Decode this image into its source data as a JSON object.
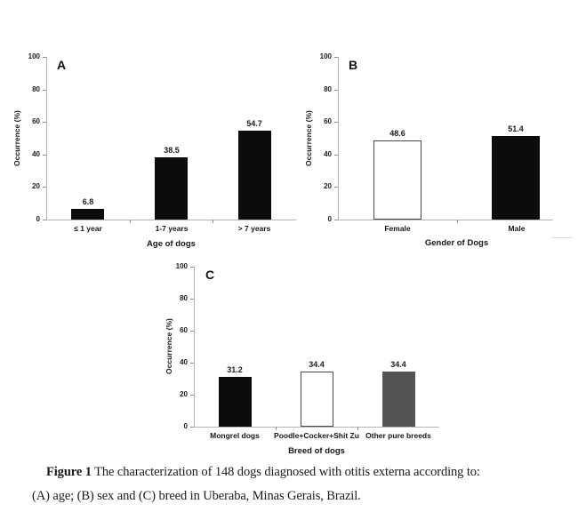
{
  "figure": {
    "background": "#ffffff"
  },
  "colors": {
    "bar_black": "#0c0c0c",
    "bar_white": "#ffffff",
    "bar_gray": "#545454",
    "white_bar_border": "#4a4a4a",
    "axis_line": "#b4b4b4",
    "tick_mark": "#8e8e8e",
    "text": "#1c1c1c"
  },
  "chart_data": [
    {
      "type": "bar",
      "panel_label": "A",
      "title": "",
      "xlabel": "Age of dogs",
      "ylabel": "Occurrence  (%)",
      "categories": [
        "≤ 1 year",
        "1-7 years",
        "> 7 years"
      ],
      "values": [
        6.8,
        38.5,
        54.7
      ],
      "value_labels": [
        "6.8",
        "38.5",
        "54.7"
      ],
      "bar_colors": [
        "#0c0c0c",
        "#0c0c0c",
        "#0c0c0c"
      ],
      "ylim": [
        0,
        100
      ],
      "yticks": [
        0,
        20,
        40,
        60,
        80,
        100
      ],
      "grid": false,
      "legend": "none"
    },
    {
      "type": "bar",
      "panel_label": "B",
      "title": "",
      "xlabel": "Gender of Dogs",
      "ylabel": "Occurrence (%)",
      "categories": [
        "Female",
        "Male"
      ],
      "values": [
        48.6,
        51.4
      ],
      "value_labels": [
        "48.6",
        "51.4"
      ],
      "bar_colors": [
        "#ffffff",
        "#0c0c0c"
      ],
      "ylim": [
        0,
        100
      ],
      "yticks": [
        0,
        20,
        40,
        60,
        80,
        100
      ],
      "grid": false,
      "legend": "none"
    },
    {
      "type": "bar",
      "panel_label": "C",
      "title": "",
      "xlabel": "Breed of dogs",
      "ylabel": "Occurrence (%)",
      "categories": [
        "Mongrel dogs",
        "Poodle+Cocker+Shit Zu",
        "Other pure breeds"
      ],
      "values": [
        31.2,
        34.4,
        34.4
      ],
      "value_labels": [
        "31.2",
        "34.4",
        "34.4"
      ],
      "bar_colors": [
        "#0c0c0c",
        "#ffffff",
        "#545454"
      ],
      "ylim": [
        0,
        100
      ],
      "yticks": [
        0,
        20,
        40,
        60,
        80,
        100
      ],
      "grid": false,
      "legend": "none"
    }
  ],
  "caption": {
    "figure_label": "Figure 1",
    "line1_rest": " The characterization of 148 dogs diagnosed with otitis externa according to:",
    "line2": "(A) age; (B) sex and (C) breed in Uberaba, Minas Gerais, Brazil."
  }
}
